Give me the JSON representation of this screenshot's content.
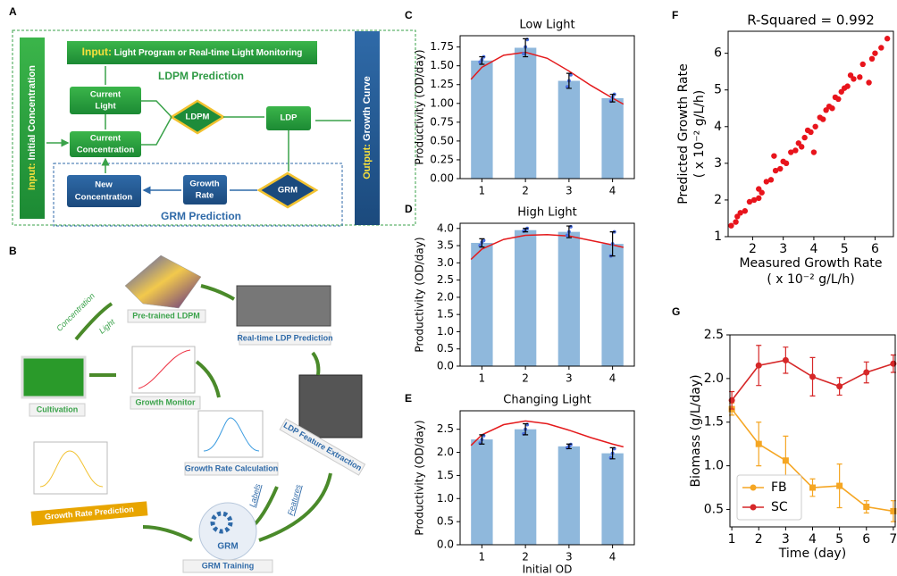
{
  "diagram_a": {
    "panel": "A",
    "input_prefix": "Input:",
    "input_text": "Light Program or Real-time Light Monitoring",
    "ldpm_prediction": "LDPM Prediction",
    "current_light": [
      "Current",
      "Light"
    ],
    "current_concentration": [
      "Current",
      "Concentration"
    ],
    "ldpm": "LDPM",
    "ldp": "LDP",
    "initial_prefix": "Input:",
    "initial_text": "Initial Concentration",
    "output_prefix": "Output:",
    "output_text": "Growth Curve",
    "new_concentration": [
      "New",
      "Concentration"
    ],
    "growth_rate": [
      "Growth",
      "Rate"
    ],
    "grm": "GRM",
    "grm_prediction": "GRM Prediction"
  },
  "diagram_b": {
    "panel": "B",
    "concentration": "Concentration",
    "light": "Light",
    "pretrained": "Pre-trained LDPM",
    "realtime": "Real-time LDP Prediction",
    "cultivation": "Cultivation",
    "growth_monitor": "Growth Monitor",
    "feature_extraction": "LDP Feature Extraction",
    "rate_calculation": "Growth Rate Calculation",
    "labels": "Labels",
    "features": "Features",
    "grm": "GRM",
    "grm_training": "GRM Training",
    "rate_prediction": "Growth Rate Prediction"
  },
  "chart_data": [
    {
      "type": "bar",
      "panel": "C",
      "title": "Low Light",
      "ylabel": "Productivity (OD/day)",
      "color": "#8fb8dc",
      "point_color": "#4a6fe0",
      "x": [
        1,
        2,
        3,
        4
      ],
      "values": [
        1.57,
        1.74,
        1.3,
        1.07
      ],
      "errors": [
        0.05,
        0.12,
        0.1,
        0.05
      ],
      "points": [
        [
          1.55,
          1.58,
          1.62
        ],
        [
          1.66,
          1.75,
          1.85
        ],
        [
          1.22,
          1.3,
          1.38
        ],
        [
          1.03,
          1.08,
          1.12
        ]
      ],
      "curve": {
        "color": "#e41a1c",
        "x": [
          0.75,
          1,
          1.5,
          2,
          2.5,
          3,
          3.5,
          4,
          4.25
        ],
        "values": [
          1.32,
          1.48,
          1.64,
          1.68,
          1.6,
          1.43,
          1.24,
          1.07,
          0.99
        ]
      },
      "xlim": [
        0.5,
        4.5
      ],
      "xticks": [
        1,
        2,
        3,
        4
      ],
      "ylim": [
        0,
        1.9
      ],
      "yticks": [
        {
          "value": 0,
          "label": "0.00"
        },
        0.25,
        {
          "value": 0.5,
          "label": "0.50"
        },
        0.75,
        {
          "value": 1,
          "label": "1.00"
        },
        1.25,
        {
          "value": 1.5,
          "label": "1.50"
        },
        1.75
      ]
    },
    {
      "type": "bar",
      "panel": "D",
      "title": "High Light",
      "ylabel": "Productivity (OD/day)",
      "color": "#8fb8dc",
      "point_color": "#4a6fe0",
      "x": [
        1,
        2,
        3,
        4
      ],
      "values": [
        3.58,
        3.95,
        3.9,
        3.55
      ],
      "errors": [
        0.12,
        0.05,
        0.17,
        0.35
      ],
      "points": [
        [
          3.5,
          3.6,
          3.65
        ],
        [
          3.92,
          3.96,
          4.0
        ],
        [
          3.8,
          3.9,
          4.05
        ],
        [
          3.2,
          3.55,
          3.9
        ]
      ],
      "curve": {
        "color": "#e41a1c",
        "x": [
          0.75,
          1,
          1.5,
          2,
          2.5,
          3,
          3.5,
          4,
          4.25
        ],
        "values": [
          3.1,
          3.4,
          3.68,
          3.8,
          3.82,
          3.78,
          3.65,
          3.52,
          3.45
        ]
      },
      "xlim": [
        0.5,
        4.5
      ],
      "xticks": [
        1,
        2,
        3,
        4
      ],
      "ylim": [
        0,
        4.15
      ],
      "yticks": [
        {
          "value": 0,
          "label": "0.0"
        },
        0.5,
        {
          "value": 1,
          "label": "1.0"
        },
        1.5,
        {
          "value": 2,
          "label": "2.0"
        },
        2.5,
        {
          "value": 3,
          "label": "3.0"
        },
        3.5,
        {
          "value": 4,
          "label": "4.0"
        }
      ]
    },
    {
      "type": "bar",
      "panel": "E",
      "title": "Changing Light",
      "ylabel": "Productivity (OD/day)",
      "xlabel": "Initial OD",
      "color": "#8fb8dc",
      "point_color": "#4a6fe0",
      "x": [
        1,
        2,
        3,
        4
      ],
      "values": [
        2.28,
        2.5,
        2.13,
        1.98
      ],
      "errors": [
        0.1,
        0.12,
        0.05,
        0.12
      ],
      "points": [
        [
          2.2,
          2.28,
          2.36
        ],
        [
          2.4,
          2.5,
          2.6
        ],
        [
          2.1,
          2.13,
          2.17
        ],
        [
          1.88,
          1.98,
          2.08
        ]
      ],
      "curve": {
        "color": "#e41a1c",
        "x": [
          0.75,
          1,
          1.5,
          2,
          2.5,
          3,
          3.5,
          4,
          4.25
        ],
        "values": [
          2.15,
          2.38,
          2.6,
          2.68,
          2.62,
          2.48,
          2.32,
          2.18,
          2.12
        ]
      },
      "xlim": [
        0.5,
        4.5
      ],
      "xticks": [
        1,
        2,
        3,
        4
      ],
      "ylim": [
        0,
        2.9
      ],
      "yticks": [
        {
          "value": 0,
          "label": "0.0"
        },
        0.5,
        {
          "value": 1,
          "label": "1.0"
        },
        1.5,
        {
          "value": 2,
          "label": "2.0"
        },
        2.5
      ]
    },
    {
      "type": "scatter",
      "panel": "F",
      "title": "R-Squared = 0.992",
      "xlabel": "Measured Growth Rate",
      "xlabel_unit": "( x 10⁻² g/L/h)",
      "ylabel": "Predicted Growth Rate",
      "ylabel_unit": "( x 10⁻² g/L/h)",
      "color": "#e8141c",
      "x": [
        1.3,
        1.45,
        1.6,
        1.75,
        1.9,
        2.05,
        2.2,
        2.3,
        2.45,
        2.6,
        2.7,
        2.75,
        2.9,
        3.0,
        3.1,
        3.25,
        3.4,
        3.5,
        3.6,
        3.7,
        3.8,
        3.9,
        4.0,
        4.05,
        4.2,
        4.3,
        4.4,
        4.5,
        4.6,
        4.7,
        4.8,
        4.9,
        5.0,
        5.1,
        5.3,
        5.5,
        5.6,
        5.8,
        5.9,
        6.0,
        6.2,
        6.4,
        5.2,
        2.2,
        1.5
      ],
      "values": [
        1.3,
        1.4,
        1.65,
        1.7,
        1.95,
        2.0,
        2.3,
        2.2,
        2.5,
        2.55,
        3.2,
        2.8,
        2.85,
        3.05,
        3.0,
        3.3,
        3.35,
        3.55,
        3.45,
        3.7,
        3.9,
        3.85,
        3.3,
        4.0,
        4.25,
        4.2,
        4.45,
        4.55,
        4.5,
        4.8,
        4.75,
        4.95,
        5.05,
        5.1,
        5.3,
        5.35,
        5.7,
        5.2,
        5.85,
        6.0,
        6.15,
        6.4,
        5.4,
        2.05,
        1.55
      ],
      "xlim": [
        1.2,
        6.6
      ],
      "xticks": [
        2,
        3,
        4,
        5,
        6
      ],
      "ylim": [
        1,
        6.6
      ],
      "yticks": [
        1,
        2,
        3,
        4,
        5,
        6
      ]
    },
    {
      "type": "line",
      "panel": "G",
      "xlabel": "Time (day)",
      "ylabel": "Biomass (g/L/day)",
      "legend": "lower left",
      "x": [
        1,
        2,
        3,
        4,
        5,
        6,
        7
      ],
      "series": [
        {
          "name": "FB",
          "color": "#f5a623",
          "values": [
            1.65,
            1.25,
            1.06,
            0.75,
            0.77,
            0.53,
            0.48
          ],
          "errors": [
            0.07,
            0.25,
            0.28,
            0.1,
            0.25,
            0.07,
            0.12
          ]
        },
        {
          "name": "SC",
          "color": "#d62728",
          "values": [
            1.75,
            2.15,
            2.21,
            2.02,
            1.91,
            2.07,
            2.17
          ],
          "errors": [
            0.1,
            0.23,
            0.15,
            0.22,
            0.1,
            0.12,
            0.1
          ]
        }
      ],
      "xlim": [
        0.93,
        7.07
      ],
      "xticks": [
        1,
        2,
        3,
        4,
        5,
        6,
        7
      ],
      "ylim": [
        0.3,
        2.5
      ],
      "yticks": [
        0.5,
        {
          "value": 1,
          "label": "1.0"
        },
        1.5,
        {
          "value": 2,
          "label": "2.0"
        },
        2.5
      ]
    }
  ]
}
